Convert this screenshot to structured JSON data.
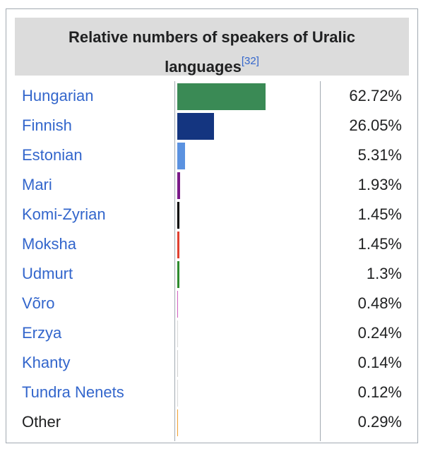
{
  "caption": {
    "line1": "Relative numbers of speakers of Uralic",
    "line2": "languages",
    "citation": "[32]"
  },
  "chart_data": {
    "type": "bar",
    "title": "Relative numbers of speakers of Uralic languages",
    "categories": [
      "Hungarian",
      "Finnish",
      "Estonian",
      "Mari",
      "Komi-Zyrian",
      "Moksha",
      "Udmurt",
      "Võro",
      "Erzya",
      "Khanty",
      "Tundra Nenets",
      "Other"
    ],
    "values": [
      62.72,
      26.05,
      5.31,
      1.93,
      1.45,
      1.45,
      1.3,
      0.48,
      0.24,
      0.14,
      0.12,
      0.29
    ],
    "value_labels": [
      "62.72%",
      "26.05%",
      "5.31%",
      "1.93%",
      "1.45%",
      "1.45%",
      "1.3%",
      "0.48%",
      "0.24%",
      "0.14%",
      "0.12%",
      "0.29%"
    ],
    "colors": [
      "#3a8a55",
      "#143580",
      "#5b92e0",
      "#7a1a88",
      "#000000",
      "#e04030",
      "#2e8b2e",
      "#d060c0",
      "#d8d8d8",
      "#d0d0d0",
      "#d8d8d8",
      "#f0a030"
    ],
    "xlim": [
      0,
      100
    ],
    "linked": [
      true,
      true,
      true,
      true,
      true,
      true,
      true,
      true,
      true,
      true,
      true,
      false
    ],
    "xlabel": "",
    "ylabel": ""
  }
}
